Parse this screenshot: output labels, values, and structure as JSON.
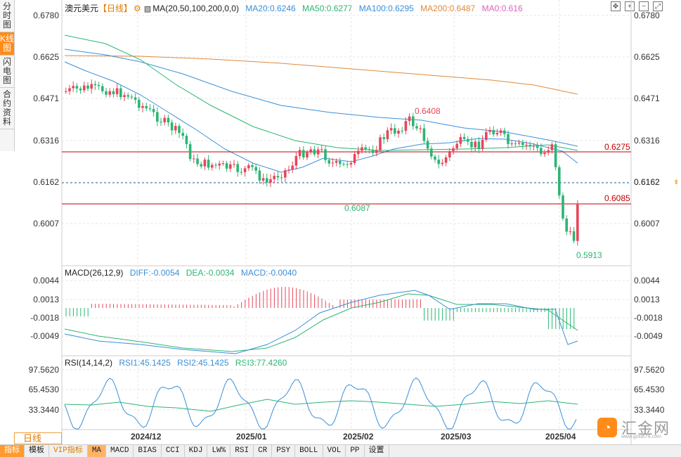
{
  "side_tabs": [
    {
      "label": "分时图"
    },
    {
      "label": "K线图"
    },
    {
      "label": "闪电图"
    },
    {
      "label": "合约资料"
    }
  ],
  "kline": {
    "title": "澳元美元",
    "period": "【日线】",
    "ma_label": "MA(20,50,100,200,0,0)",
    "ma20": "MA20:0.6246",
    "ma50": "MA50:0.6277",
    "ma100": "MA100:0.6295",
    "ma200": "MA200:0.6487",
    "ma0": "MA0:0.616",
    "price_ticks": [
      "0.6780",
      "0.6625",
      "0.6471",
      "0.6316",
      "0.6162",
      "0.6007"
    ],
    "annotations": {
      "high": "0.6408",
      "low1": "0.6087",
      "low2": "0.5913",
      "line_upper": "0.6275",
      "line_lower": "0.6085"
    },
    "current_price": "0.6162"
  },
  "macd": {
    "label": "MACD(26,12,9)",
    "diff": "DIFF:-0.0054",
    "dea": "DEA:-0.0034",
    "macd": "MACD:-0.0040",
    "ticks": [
      "0.0044",
      "0.0013",
      "-0.0018",
      "-0.0049"
    ]
  },
  "rsi": {
    "label": "RSI(14,14,2)",
    "rsi1": "RSI1:45.1425",
    "rsi2": "RSI2:45.1425",
    "rsi3": "RSI3:77.4260",
    "ticks": [
      "97.5620",
      "65.4530",
      "33.3440"
    ]
  },
  "date_ticks": [
    "2024/12",
    "2025/01",
    "2025/02",
    "2025/03",
    "2025/04"
  ],
  "period_selector": "日线",
  "bottom_tabs": [
    "指标",
    "模板",
    "VIP指标",
    "MA",
    "MACD",
    "BIAS",
    "CCI",
    "KDJ",
    "LW%",
    "RSI",
    "CR",
    "PSY",
    "BOLL",
    "VOL",
    "PP",
    "设置"
  ],
  "logo": {
    "text": "汇金网",
    "url": "www.gold678.com"
  },
  "colors": {
    "up": "#e8465a",
    "down": "#2bb673",
    "ma20": "#3a8fd8",
    "ma50": "#2bb673",
    "ma100": "#3a8fd8",
    "ma200": "#e08a3a",
    "ma0": "#e060c0",
    "hline": "#c00000"
  }
}
